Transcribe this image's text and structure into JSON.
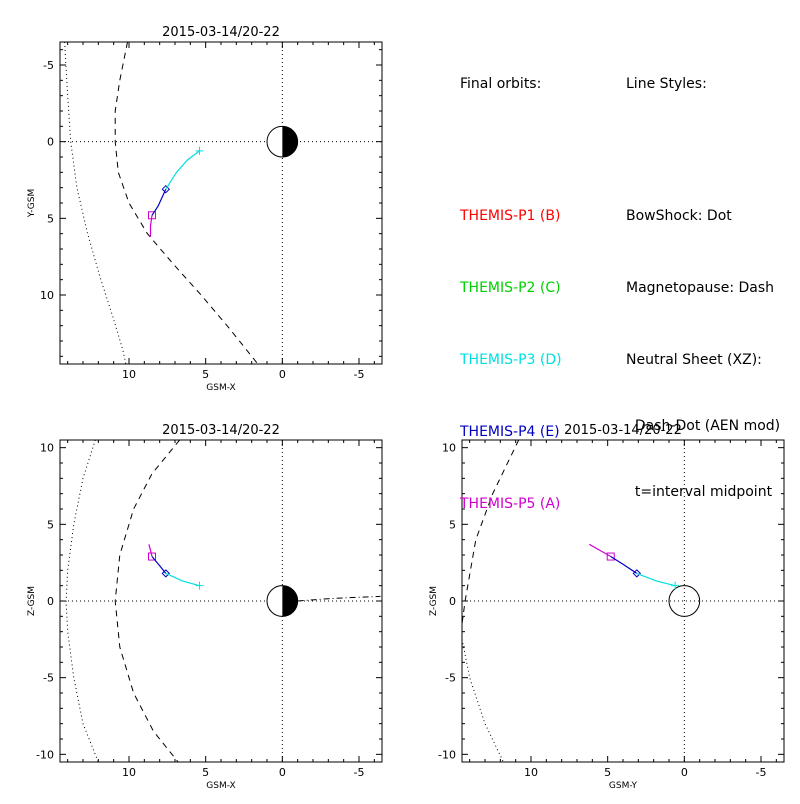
{
  "legend": {
    "orbits_title": "Final orbits:",
    "probes": [
      {
        "label": "THEMIS-P1 (B)",
        "color": "#ff0000"
      },
      {
        "label": "THEMIS-P2 (C)",
        "color": "#00d000"
      },
      {
        "label": "THEMIS-P3 (D)",
        "color": "#00e0e0"
      },
      {
        "label": "THEMIS-P4 (E)",
        "color": "#0000c0"
      },
      {
        "label": "THEMIS-P5 (A)",
        "color": "#d000d0"
      }
    ],
    "styles_title": "Line Styles:",
    "styles": [
      "BowShock: Dot",
      "Magnetopause: Dash",
      "Neutral Sheet (XZ):",
      "  Dash-Dot (AEN mod)",
      "  t=interval midpoint"
    ]
  },
  "chart_data": [
    {
      "type": "line",
      "name": "xy",
      "title": "2015-03-14/20-22",
      "xlabel": "GSM-X",
      "ylabel": "Y-GSM",
      "xlim": [
        14.5,
        -6.5
      ],
      "ylim": [
        -6.5,
        14.5
      ],
      "xticks": [
        10,
        5,
        0,
        -5
      ],
      "yticks": [
        -5,
        0,
        5,
        10
      ],
      "tick_labels_x": [
        "10",
        "5",
        "0",
        "-5"
      ],
      "tick_labels_y": [
        "-5",
        "0",
        "5",
        "10"
      ],
      "sun_earth": true,
      "bowshock": [
        [
          14.2,
          -6.5
        ],
        [
          14.0,
          -3
        ],
        [
          13.8,
          0
        ],
        [
          13.4,
          3
        ],
        [
          12.7,
          6
        ],
        [
          11.9,
          8.8
        ],
        [
          11.0,
          11.6
        ],
        [
          10.4,
          13.6
        ],
        [
          10.2,
          14.5
        ]
      ],
      "magnetopause": [
        [
          10.1,
          -6.5
        ],
        [
          10.6,
          -4
        ],
        [
          10.9,
          -2
        ],
        [
          10.9,
          0
        ],
        [
          10.7,
          2
        ],
        [
          10.0,
          4
        ],
        [
          8.8,
          6
        ],
        [
          7.1,
          8
        ],
        [
          5.3,
          10
        ],
        [
          3.6,
          12
        ],
        [
          2.0,
          14
        ],
        [
          1.6,
          14.5
        ]
      ],
      "orbits": [
        {
          "probe": "P5",
          "color": "#d000d0",
          "points": [
            [
              8.6,
              6.2
            ],
            [
              8.6,
              5.5
            ],
            [
              8.5,
              4.8
            ]
          ],
          "marker": "square",
          "marker_at": [
            8.5,
            4.8
          ]
        },
        {
          "probe": "P4",
          "color": "#0000c0",
          "points": [
            [
              8.5,
              4.8
            ],
            [
              8.1,
              4.2
            ],
            [
              7.6,
              3.1
            ]
          ],
          "marker": "diamond",
          "marker_at": [
            7.6,
            3.1
          ]
        },
        {
          "probe": "P3",
          "color": "#00e0e0",
          "points": [
            [
              7.6,
              3.1
            ],
            [
              6.9,
              2.0
            ],
            [
              6.2,
              1.2
            ],
            [
              5.4,
              0.6
            ]
          ],
          "marker": "plus",
          "marker_at": [
            5.4,
            0.6
          ]
        }
      ]
    },
    {
      "type": "line",
      "name": "xz",
      "title": "2015-03-14/20-22",
      "xlabel": "GSM-X",
      "ylabel": "Z-GSM",
      "xlim": [
        14.5,
        -6.5
      ],
      "ylim": [
        -10.5,
        10.5
      ],
      "xticks": [
        10,
        5,
        0,
        -5
      ],
      "yticks": [
        10,
        5,
        0,
        -5,
        -10
      ],
      "tick_labels_x": [
        "10",
        "5",
        "0",
        "-5"
      ],
      "tick_labels_y": [
        "10",
        "5",
        "0",
        "-5",
        "-10"
      ],
      "sun_earth": true,
      "bowshock": [
        [
          12.2,
          10.5
        ],
        [
          13.0,
          8
        ],
        [
          13.6,
          5
        ],
        [
          14.0,
          2
        ],
        [
          14.1,
          0
        ],
        [
          14.0,
          -2
        ],
        [
          13.6,
          -5
        ],
        [
          13.0,
          -8
        ],
        [
          12.0,
          -10.5
        ]
      ],
      "magnetopause": [
        [
          6.7,
          10.5
        ],
        [
          8.5,
          8.3
        ],
        [
          9.7,
          6
        ],
        [
          10.6,
          3
        ],
        [
          10.9,
          0
        ],
        [
          10.6,
          -3
        ],
        [
          9.7,
          -6
        ],
        [
          8.4,
          -8.5
        ],
        [
          6.8,
          -10.5
        ]
      ],
      "neutral_sheet": [
        [
          -1.0,
          0.0
        ],
        [
          -3.0,
          0.15
        ],
        [
          -5.0,
          0.25
        ],
        [
          -6.4,
          0.3
        ]
      ],
      "orbits": [
        {
          "probe": "P5",
          "color": "#d000d0",
          "points": [
            [
              8.7,
              3.7
            ],
            [
              8.6,
              3.3
            ],
            [
              8.5,
              2.9
            ]
          ],
          "marker": "square",
          "marker_at": [
            8.5,
            2.9
          ]
        },
        {
          "probe": "P4",
          "color": "#0000c0",
          "points": [
            [
              8.5,
              2.9
            ],
            [
              8.0,
              2.3
            ],
            [
              7.6,
              1.8
            ]
          ],
          "marker": "diamond",
          "marker_at": [
            7.6,
            1.8
          ]
        },
        {
          "probe": "P3",
          "color": "#00e0e0",
          "points": [
            [
              7.6,
              1.8
            ],
            [
              6.5,
              1.3
            ],
            [
              5.4,
              1.0
            ]
          ],
          "marker": "plus",
          "marker_at": [
            5.4,
            1.0
          ]
        }
      ]
    },
    {
      "type": "line",
      "name": "yz",
      "title": "2015-03-14/20-22",
      "xlabel": "GSM-Y",
      "ylabel": "Z-GSM",
      "xlim": [
        14.5,
        -6.5
      ],
      "ylim": [
        -10.5,
        10.5
      ],
      "xticks": [
        10,
        5,
        0,
        -5
      ],
      "yticks": [
        10,
        5,
        0,
        -5,
        -10
      ],
      "tick_labels_x": [
        "10",
        "5",
        "0",
        "-5"
      ],
      "tick_labels_y": [
        "10",
        "5",
        "0",
        "-5",
        "-10"
      ],
      "sun_earth": false,
      "earth_outline": true,
      "magnetopause": [
        [
          10.8,
          10.5
        ],
        [
          12.5,
          7
        ],
        [
          13.6,
          4
        ],
        [
          14.3,
          0
        ],
        [
          14.5,
          -1.5
        ]
      ],
      "bowshock_lower": [
        [
          14.5,
          -2.5
        ],
        [
          14.0,
          -5
        ],
        [
          13.0,
          -8
        ],
        [
          11.8,
          -10.5
        ]
      ],
      "orbits": [
        {
          "probe": "P5",
          "color": "#d000d0",
          "points": [
            [
              6.2,
              3.7
            ],
            [
              5.5,
              3.3
            ],
            [
              4.8,
              2.9
            ]
          ],
          "marker": "square",
          "marker_at": [
            4.8,
            2.9
          ]
        },
        {
          "probe": "P4",
          "color": "#0000c0",
          "points": [
            [
              4.8,
              2.9
            ],
            [
              4.0,
              2.4
            ],
            [
              3.1,
              1.8
            ]
          ],
          "marker": "diamond",
          "marker_at": [
            3.1,
            1.8
          ]
        },
        {
          "probe": "P3",
          "color": "#00e0e0",
          "points": [
            [
              3.1,
              1.8
            ],
            [
              1.8,
              1.3
            ],
            [
              0.6,
              1.0
            ]
          ],
          "marker": "plus",
          "marker_at": [
            0.6,
            1.0
          ]
        }
      ]
    }
  ]
}
